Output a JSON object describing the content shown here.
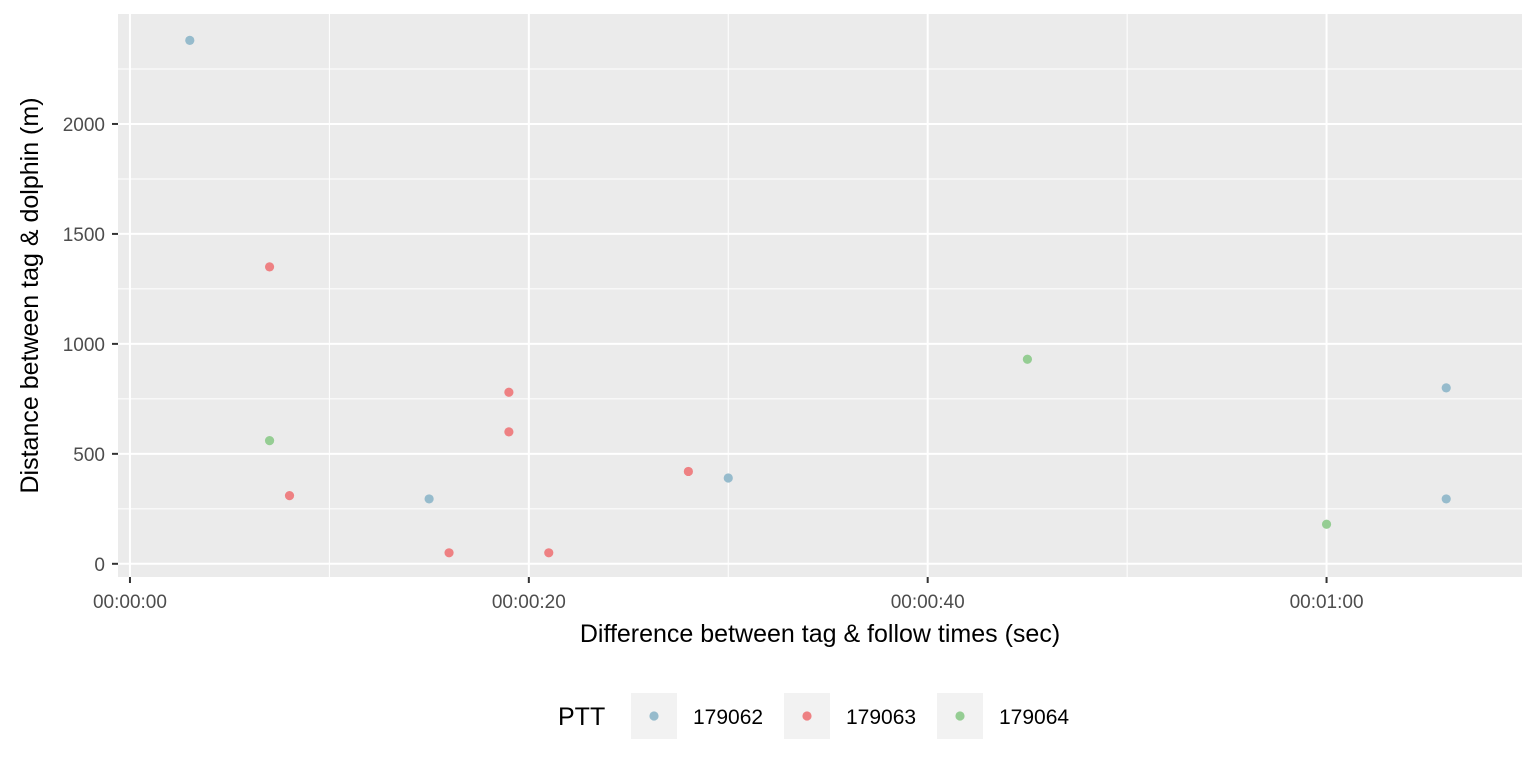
{
  "chart_data": {
    "type": "scatter",
    "xlabel": "Difference between tag & follow times (sec)",
    "ylabel": "Distance between tag & dolphin (m)",
    "x_ticks": [
      "00:00:00",
      "00:00:20",
      "00:00:40",
      "00:01:00"
    ],
    "x_tick_values": [
      0,
      20,
      40,
      60
    ],
    "x_range": [
      -0.6,
      69.8
    ],
    "x_units": "seconds",
    "y_ticks": [
      "0",
      "500",
      "1000",
      "1500",
      "2000"
    ],
    "y_tick_values": [
      0,
      500,
      1000,
      1500,
      2000
    ],
    "y_range": [
      -60,
      2500
    ],
    "grid": true,
    "legend_position": "bottom",
    "legend_title": "PTT",
    "background": "#ebebeb",
    "series": [
      {
        "name": "179062",
        "color": "#96bbcc",
        "points": [
          [
            3,
            2380
          ],
          [
            15,
            295
          ],
          [
            30,
            390
          ],
          [
            66,
            800
          ],
          [
            66,
            295
          ]
        ]
      },
      {
        "name": "179063",
        "color": "#ee8183",
        "points": [
          [
            7,
            1350
          ],
          [
            8,
            310
          ],
          [
            16,
            50
          ],
          [
            19,
            780
          ],
          [
            19,
            600
          ],
          [
            21,
            50
          ],
          [
            28,
            420
          ]
        ]
      },
      {
        "name": "179064",
        "color": "#95cd93",
        "points": [
          [
            7,
            560
          ],
          [
            45,
            930
          ],
          [
            60,
            180
          ]
        ]
      }
    ]
  }
}
